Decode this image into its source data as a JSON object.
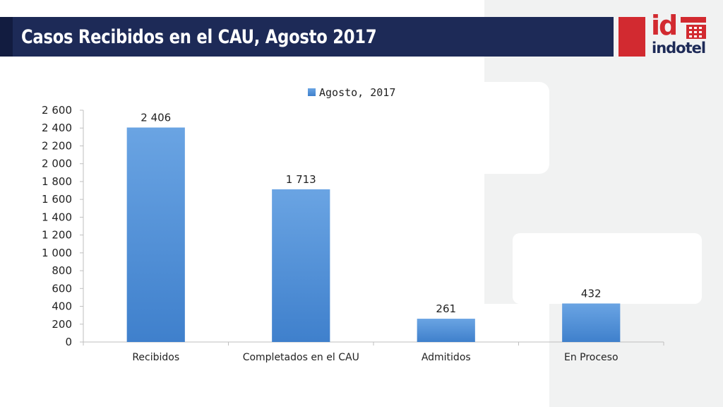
{
  "header": {
    "title": "Casos Recibidos en el CAU, Agosto 2017"
  },
  "logo": {
    "mark": "id",
    "name": "indotel",
    "brand_red": "#d22a30",
    "brand_navy": "#1d2a57"
  },
  "chart_data": {
    "type": "bar",
    "title": "",
    "xlabel": "",
    "ylabel": "",
    "categories": [
      "Recibidos",
      "Completados en el CAU",
      "Admitidos",
      "En Proceso"
    ],
    "series": [
      {
        "name": "Agosto, 2017",
        "values": [
          2406,
          1713,
          261,
          432
        ],
        "labels": [
          "2 406",
          "1 713",
          "261",
          "432"
        ],
        "color": "#4f8fd6"
      }
    ],
    "ylim": [
      0,
      2600
    ],
    "yticks": [
      0,
      200,
      400,
      600,
      800,
      1000,
      1200,
      1400,
      1600,
      1800,
      2000,
      2200,
      2400,
      2600
    ],
    "ytick_labels": [
      "0",
      "200",
      "400",
      "600",
      "800",
      "1 000",
      "1 200",
      "1 400",
      "1 600",
      "1 800",
      "2 000",
      "2 200",
      "2 400",
      "2 600"
    ],
    "legend": "top-center",
    "grid": false
  }
}
